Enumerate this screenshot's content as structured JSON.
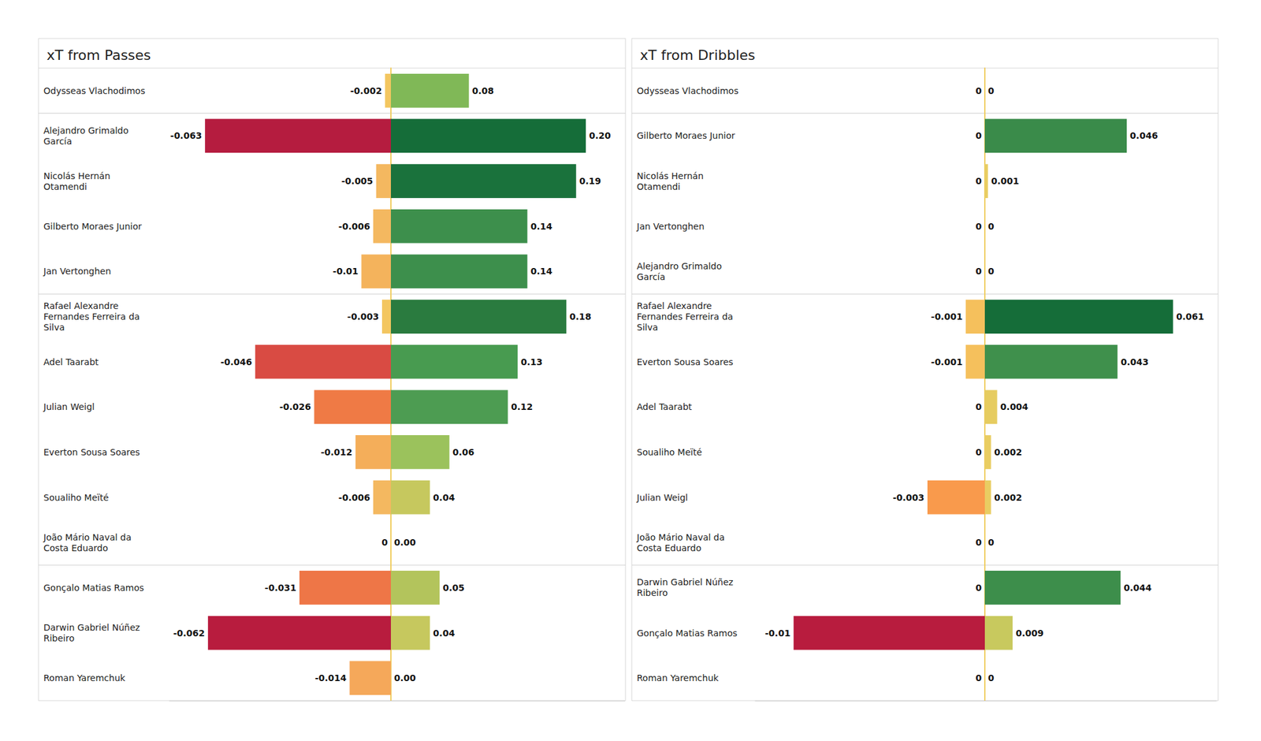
{
  "chart_data": [
    {
      "type": "bar",
      "title": "xT from Passes",
      "orientation": "horizontal",
      "data_labels": true,
      "tick_labels": false,
      "grid": false,
      "categories": [
        "Odysseas Vlachodimos",
        "Alejandro Grimaldo García",
        "Nicolás Hernán Otamendi",
        "Gilberto Moraes Junior",
        "Jan Vertonghen",
        "Rafael Alexandre Fernandes Ferreira da Silva",
        "Adel Taarabt",
        "Julian Weigl",
        "Everton Sousa Soares",
        "Soualiho Meïté",
        "João Mário Naval da Costa Eduardo",
        "Gonçalo Matias Ramos",
        "Darwin Gabriel Núñez Ribeiro",
        "Roman Yaremchuk"
      ],
      "groups": [
        1,
        4,
        6,
        3
      ],
      "series": [
        {
          "xlim": [
            -0.075,
            0
          ],
          "values": [
            -0.002,
            -0.063,
            -0.005,
            -0.006,
            -0.01,
            -0.003,
            -0.046,
            -0.026,
            -0.012,
            -0.006,
            0,
            -0.031,
            -0.062,
            -0.014
          ],
          "colors": [
            "#f3c660",
            "#b51c3f",
            "#f4b860",
            "#f4b860",
            "#f4b35c",
            "#f3c660",
            "#d94b43",
            "#ef7a45",
            "#f4ae5a",
            "#f4b860",
            "#f0cd5f",
            "#ee7647",
            "#b81c3e",
            "#f5a85a"
          ]
        },
        {
          "xlim": [
            0,
            0.24
          ],
          "values": [
            0.08,
            0.2,
            0.19,
            0.14,
            0.14,
            0.18,
            0.13,
            0.12,
            0.06,
            0.04,
            0,
            0.05,
            0.04,
            0
          ],
          "value_labels": [
            "0.08",
            "0.20",
            "0.19",
            "0.14",
            "0.14",
            "0.18",
            "0.13",
            "0.12",
            "0.06",
            "0.04",
            "0.00",
            "0.05",
            "0.04",
            "0.00"
          ],
          "colors": [
            "#80b857",
            "#156d39",
            "#1a723c",
            "#3d8f4c",
            "#3d8f4c",
            "#2a7b3f",
            "#489b50",
            "#4d9c52",
            "#9bc25c",
            "#c6c85e",
            "#e8cd62",
            "#b3c45c",
            "#c6c85e",
            "#e8cd62"
          ]
        }
      ]
    },
    {
      "type": "bar",
      "title": "xT from Dribbles",
      "orientation": "horizontal",
      "data_labels": true,
      "tick_labels": false,
      "grid": false,
      "categories": [
        "Odysseas Vlachodimos",
        "Gilberto Moraes Junior",
        "Nicolás Hernán Otamendi",
        "Jan Vertonghen",
        "Alejandro Grimaldo García",
        "Rafael Alexandre Fernandes Ferreira da Silva",
        "Everton Sousa Soares",
        "Adel Taarabt",
        "Soualiho Meïté",
        "Julian Weigl",
        "João Mário Naval da Costa Eduardo",
        "Darwin Gabriel Núñez Ribeiro",
        "Gonçalo Matias Ramos",
        "Roman Yaremchuk"
      ],
      "groups": [
        1,
        4,
        6,
        3
      ],
      "series": [
        {
          "xlim": [
            -0.012,
            0
          ],
          "values": [
            0,
            0,
            0,
            0,
            0,
            -0.001,
            -0.001,
            0,
            0,
            -0.003,
            0,
            0,
            -0.01,
            0
          ],
          "colors": [
            "#f0cd5f",
            "#f0cd5f",
            "#f0cd5f",
            "#f0cd5f",
            "#f0cd5f",
            "#f5c05c",
            "#f5c05c",
            "#f0cd5f",
            "#f0cd5f",
            "#f99a4c",
            "#f0cd5f",
            "#f0cd5f",
            "#b81c3e",
            "#f0cd5f"
          ]
        },
        {
          "xlim": [
            0,
            0.075
          ],
          "values": [
            0,
            0.046,
            0.001,
            0,
            0,
            0.061,
            0.043,
            0.004,
            0.002,
            0.002,
            0,
            0.044,
            0.009,
            0
          ],
          "colors": [
            "#f0cd5f",
            "#3a8b4a",
            "#e8cd62",
            "#f0cd5f",
            "#f0cd5f",
            "#156d39",
            "#3f904c",
            "#e6cc60",
            "#e9cd62",
            "#e9cd62",
            "#f0cd5f",
            "#3d8e4b",
            "#c8c95e",
            "#f0cd5f"
          ]
        }
      ]
    }
  ]
}
